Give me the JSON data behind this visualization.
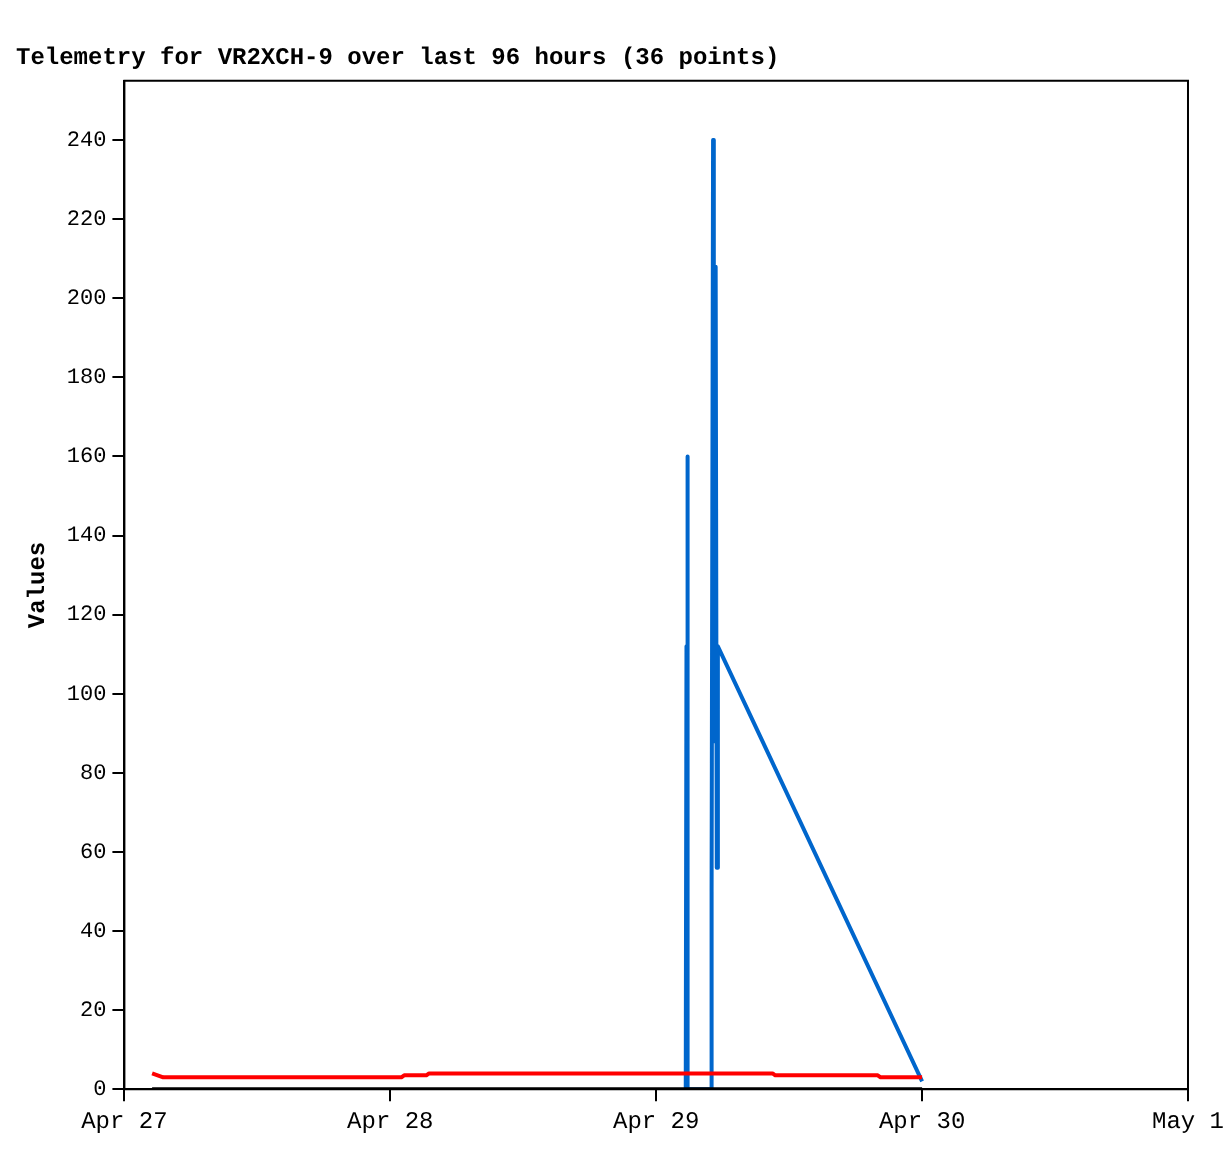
{
  "chart_data": {
    "type": "line",
    "title": "Telemetry for VR2XCH-9 over last 96 hours (36 points)",
    "ylabel": "Values",
    "xlim": [
      "--04-27",
      "--05-01"
    ],
    "xticks": [
      {
        "value": "--04-27",
        "label": "Apr 27"
      },
      {
        "value": "--04-28",
        "label": "Apr 28"
      },
      {
        "value": "--04-29",
        "label": "Apr 29"
      },
      {
        "value": "--04-30",
        "label": "Apr 30"
      },
      {
        "value": "--05-01",
        "label": "May 1"
      }
    ],
    "ylim": [
      0,
      255
    ],
    "yticks": [
      0,
      20,
      40,
      60,
      80,
      100,
      120,
      140,
      160,
      180,
      200,
      220,
      240
    ],
    "grid": false,
    "legend": false,
    "marker": "none",
    "series": [
      {
        "color": "#000000",
        "x": [
          "--04-27T02:30",
          "--04-30T00:00"
        ],
        "values": [
          0,
          0
        ]
      },
      {
        "color": "#ff0000",
        "x": [
          "--04-27T02:30",
          "--04-27T03:30",
          "--04-28T01:00",
          "--04-28T01:15",
          "--04-28T03:15",
          "--04-28T03:30",
          "--04-29T10:30",
          "--04-29T10:45",
          "--04-29T20:00",
          "--04-29T20:15",
          "--04-30T00:00"
        ],
        "values": [
          4,
          3,
          3,
          3.5,
          3.5,
          4,
          4,
          3.5,
          3.5,
          3,
          3
        ]
      },
      {
        "color": "#0066cc",
        "x": [
          "--04-29T02:40",
          "--04-29T02:44",
          "--04-29T02:48",
          "--04-29T02:52",
          "--04-29T04:56",
          "--04-29T05:00",
          "--04-29T05:08",
          "--04-29T05:12",
          "--04-29T05:16",
          "--04-29T05:22",
          "--04-29T05:28",
          "--04-29T05:34",
          "--04-30T00:00"
        ],
        "values": [
          0,
          112,
          160,
          0,
          0,
          50,
          240,
          88,
          184,
          208,
          56,
          112,
          2
        ]
      }
    ]
  }
}
